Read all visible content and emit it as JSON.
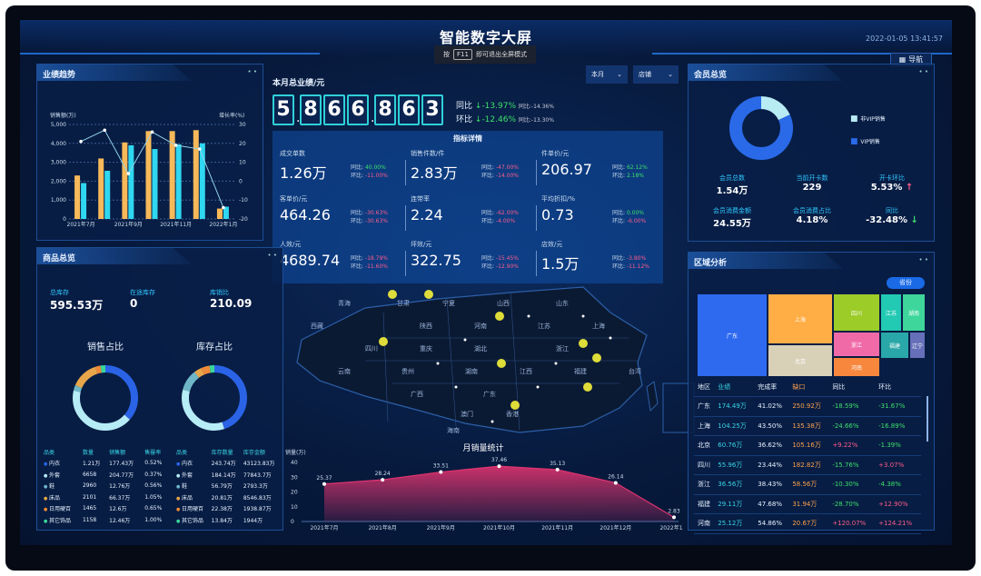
{
  "header": {
    "title": "智能数字大屏",
    "hint_prefix": "按",
    "hint_key": "F11",
    "hint_suffix": "即可退出全屏模式",
    "datetime": "2022-01-05 13:41:57",
    "nav_label": "导航"
  },
  "filters": {
    "period": "本月",
    "scope": "店铺"
  },
  "total": {
    "label": "本月总业绩/元",
    "digits": [
      "5",
      "8",
      "6",
      "6",
      "8",
      "6",
      "3"
    ],
    "yoy_label": "同比",
    "yoy": "-13.97%",
    "yoy_prev": "同比:-14.36%",
    "mom_label": "环比",
    "mom": "-12.46%",
    "mom_prev": "同比:-13.30%"
  },
  "indicators": {
    "title": "指标详情",
    "items": [
      {
        "name": "成交单数",
        "value": "1.26万",
        "yoy": "40.00%",
        "mom": "-11.00%",
        "yoy_up": true,
        "mom_up": false
      },
      {
        "name": "销售件数/件",
        "value": "2.83万",
        "yoy": "-47.00%",
        "mom": "-14.00%",
        "yoy_up": false,
        "mom_up": false
      },
      {
        "name": "件单价/元",
        "value": "206.97",
        "yoy": "62.12%",
        "mom": "2.18%",
        "yoy_up": true,
        "mom_up": true
      },
      {
        "name": "客单价/元",
        "value": "464.26",
        "yoy": "-30.63%",
        "mom": "-30.63%",
        "yoy_up": false,
        "mom_up": false
      },
      {
        "name": "连带率",
        "value": "2.24",
        "yoy": "-62.00%",
        "mom": "-4.00%",
        "yoy_up": false,
        "mom_up": false
      },
      {
        "name": "平均折扣/%",
        "value": "0.73",
        "yoy": "0.00%",
        "mom": "-6.00%",
        "yoy_up": true,
        "mom_up": false
      },
      {
        "name": "人效/元",
        "value": "4689.74",
        "yoy": "-18.79%",
        "mom": "-11.60%",
        "yoy_up": false,
        "mom_up": false
      },
      {
        "name": "坪效/元",
        "value": "322.75",
        "yoy": "-15.45%",
        "mom": "-12.90%",
        "yoy_up": false,
        "mom_up": false
      },
      {
        "name": "店效/元",
        "value": "1.5万",
        "yoy": "-3.80%",
        "mom": "-11.12%",
        "yoy_up": false,
        "mom_up": false
      }
    ],
    "yoy_label": "同比:",
    "mom_label": "环比:"
  },
  "map": {
    "labels": [
      "青海",
      "西藏",
      "甘肃",
      "宁夏",
      "山西",
      "山东",
      "陕西",
      "河南",
      "四川",
      "重庆",
      "湖北",
      "江苏",
      "上海",
      "浙江",
      "贵州",
      "湖南",
      "江西",
      "云南",
      "广西",
      "福建",
      "台湾",
      "广东",
      "澳门",
      "香港",
      "海南"
    ]
  },
  "panels": {
    "trend": "业绩趋势",
    "goods": "商品总览",
    "member": "会员总览",
    "region": "区域分析"
  },
  "goods": {
    "stats": [
      {
        "label": "总库存",
        "value": "595.53万"
      },
      {
        "label": "在途库存",
        "value": "0"
      },
      {
        "label": "库销比",
        "value": "210.09"
      }
    ],
    "sales_title": "销售占比",
    "stock_title": "库存占比",
    "sales_headers": [
      "品类",
      "数量",
      "销售额",
      "售罄率"
    ],
    "sales_rows": [
      [
        "内衣",
        "1.21万",
        "177.43万",
        "0.52%"
      ],
      [
        "外套",
        "6658",
        "204.77万",
        "0.37%"
      ],
      [
        "鞋",
        "2960",
        "12.76万",
        "0.56%"
      ],
      [
        "床品",
        "2101",
        "66.37万",
        "1.05%"
      ],
      [
        "日用硬百",
        "1465",
        "12.6万",
        "0.65%"
      ],
      [
        "其它饰品",
        "1158",
        "12.46万",
        "1.00%"
      ]
    ],
    "stock_headers": [
      "品类",
      "库存数量",
      "库存金额"
    ],
    "stock_rows": [
      [
        "内衣",
        "243.74万",
        "43123.83万"
      ],
      [
        "外套",
        "184.14万",
        "77843.7万"
      ],
      [
        "鞋",
        "56.79万",
        "2793.3万"
      ],
      [
        "床品",
        "20.81万",
        "8546.83万"
      ],
      [
        "日用硬百",
        "22.38万",
        "1938.87万"
      ],
      [
        "其它饰品",
        "13.84万",
        "1944万"
      ]
    ],
    "category_colors": [
      "#2a63e6",
      "#b6ecf6",
      "#6fb7c8",
      "#e8a64a",
      "#f08a3a",
      "#3ad69a"
    ]
  },
  "member": {
    "legend": [
      {
        "label": "非VIP销售",
        "color": "#b8ecf5"
      },
      {
        "label": "VIP销售",
        "color": "#2a6ae8"
      }
    ],
    "stats": [
      {
        "label": "会员总数",
        "value": "1.54万"
      },
      {
        "label": "当前开卡数",
        "value": "229"
      },
      {
        "label": "开卡环比",
        "value": "5.53%",
        "trend": "up"
      },
      {
        "label": "会员消费金额",
        "value": "24.55万"
      },
      {
        "label": "会员消费占比",
        "value": "4.18%"
      },
      {
        "label": "同比",
        "value": "-32.48%",
        "trend": "down"
      }
    ]
  },
  "region": {
    "select": "省份",
    "headers": [
      "地区",
      "业绩",
      "完成率",
      "缺口",
      "同比",
      "环比"
    ],
    "rows": [
      [
        "广东",
        "174.49万",
        "41.02%",
        "250.92万",
        "-18.59%",
        "-31.67%"
      ],
      [
        "上海",
        "104.25万",
        "43.50%",
        "135.38万",
        "-24.66%",
        "-16.89%"
      ],
      [
        "北京",
        "60.76万",
        "36.62%",
        "105.16万",
        "+9.22%",
        "-1.39%"
      ],
      [
        "四川",
        "55.96万",
        "23.44%",
        "182.82万",
        "-15.76%",
        "+3.07%"
      ],
      [
        "浙江",
        "36.56万",
        "38.43%",
        "58.56万",
        "-10.30%",
        "-4.38%"
      ],
      [
        "福建",
        "29.11万",
        "47.68%",
        "31.94万",
        "-28.70%",
        "+12.90%"
      ],
      [
        "河南",
        "25.12万",
        "54.86%",
        "20.67万",
        "+120.07%",
        "+124.21%"
      ]
    ]
  },
  "chart_data": [
    {
      "id": "trend",
      "type": "bar+line",
      "categories": [
        "2021年7月",
        "2021年8月",
        "2021年9月",
        "2021年10月",
        "2021年11月",
        "2021年12月",
        "2022年1月"
      ],
      "ylabel": "销售额(万)",
      "y2label": "增长率(%)",
      "ylim": [
        0,
        5000
      ],
      "y2lim": [
        -20,
        30
      ],
      "yticks": [
        "0",
        "1,000",
        "2,000",
        "3,000",
        "4,000",
        "5,000"
      ],
      "y2ticks": [
        "-20",
        "-10",
        "0",
        "10",
        "20",
        "30"
      ],
      "series": [
        {
          "type": "bar",
          "values": [
            2300,
            3200,
            4050,
            4650,
            4650,
            4700,
            550
          ],
          "color": "#f7b95a"
        },
        {
          "type": "bar",
          "values": [
            1900,
            2550,
            3900,
            3700,
            3950,
            4000,
            650
          ],
          "color": "#2fd7f0"
        },
        {
          "type": "line",
          "axis": "right",
          "values": [
            21,
            27,
            4,
            26,
            19,
            17,
            -14
          ],
          "color": "#8fd3e8"
        }
      ],
      "grid": true
    },
    {
      "id": "sales_share",
      "type": "pie",
      "source": "goods.sales_rows (销售额)"
    },
    {
      "id": "stock_share",
      "type": "pie",
      "source": "goods.stock_rows (库存数量)"
    },
    {
      "id": "member_share",
      "type": "pie",
      "labels": [
        "非VIP销售",
        "VIP销售"
      ],
      "values": [
        18,
        82
      ]
    },
    {
      "id": "monthly",
      "type": "area",
      "title": "月销量统计",
      "ylabel": "销量(万)",
      "categories": [
        "2021年7月",
        "2021年8月",
        "2021年9月",
        "2021年10月",
        "2021年11月",
        "2021年12月",
        "2022年1月"
      ],
      "values": [
        25.37,
        28.24,
        33.51,
        37.46,
        35.13,
        26.14,
        2.83
      ],
      "ylim": [
        0,
        40
      ],
      "yticks": [
        "0",
        "10",
        "20",
        "30",
        "40"
      ],
      "color": "#e0336f"
    },
    {
      "id": "region_treemap",
      "type": "treemap",
      "items": [
        {
          "name": "广东",
          "value": 174.49,
          "color": "#2e6af0"
        },
        {
          "name": "上海",
          "value": 104.25,
          "color": "#ffae45"
        },
        {
          "name": "北京",
          "value": 60.76,
          "color": "#d9d0b8"
        },
        {
          "name": "四川",
          "value": 55.96,
          "color": "#9ccc28"
        },
        {
          "name": "浙江",
          "value": 36.56,
          "color": "#f06aa8"
        },
        {
          "name": "河南",
          "value": 25.12,
          "color": "#f6873c"
        },
        {
          "name": "江苏",
          "color": "#22c9b3"
        },
        {
          "name": "湖南",
          "color": "#3ed69a"
        },
        {
          "name": "福建",
          "value": 29.11,
          "color": "#2aa7a8"
        },
        {
          "name": "辽宁",
          "color": "#6670b8"
        }
      ]
    }
  ]
}
